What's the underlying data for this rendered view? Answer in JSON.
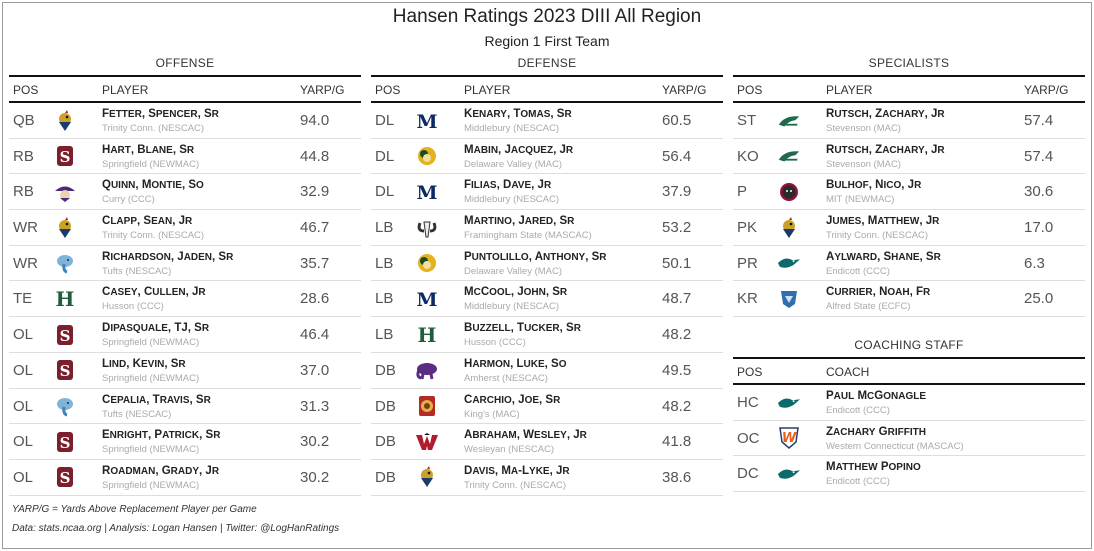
{
  "title": "Hansen Ratings 2023 DIII All Region",
  "subtitle": "Region 1 First Team",
  "headers": {
    "pos": "POS",
    "player": "PLAYER",
    "yarp": "YARP/G",
    "coach": "COACH"
  },
  "offense": {
    "title": "OFFENSE",
    "rows": [
      {
        "pos": "QB",
        "first": "Fetter, Spencer",
        "yr": "Sr",
        "team": "Trinity Conn. (NESCAC)",
        "val": "94.0",
        "logo": "bantam-logo"
      },
      {
        "pos": "RB",
        "first": "Hart, Blane",
        "yr": "Sr",
        "team": "Springfield (NEWMAC)",
        "val": "44.8",
        "logo": "springfield-s-logo"
      },
      {
        "pos": "RB",
        "first": "Quinn, Montie",
        "yr": "So",
        "team": "Curry (CCC)",
        "val": "32.9",
        "logo": "curry-colonel-logo"
      },
      {
        "pos": "WR",
        "first": "Clapp, Sean",
        "yr": "Jr",
        "team": "Trinity Conn. (NESCAC)",
        "val": "46.7",
        "logo": "bantam-logo"
      },
      {
        "pos": "WR",
        "first": "Richardson, Jaden",
        "yr": "Sr",
        "team": "Tufts (NESCAC)",
        "val": "35.7",
        "logo": "jumbo-elephant-logo"
      },
      {
        "pos": "TE",
        "first": "Casey, Cullen",
        "yr": "Jr",
        "team": "Husson (CCC)",
        "val": "28.6",
        "logo": "husson-h-logo"
      },
      {
        "pos": "OL",
        "first": "Dipasquale, TJ",
        "yr": "Sr",
        "team": "Springfield (NEWMAC)",
        "val": "46.4",
        "logo": "springfield-s-logo"
      },
      {
        "pos": "OL",
        "first": "Lind, Kevin",
        "yr": "Sr",
        "team": "Springfield (NEWMAC)",
        "val": "37.0",
        "logo": "springfield-s-logo"
      },
      {
        "pos": "OL",
        "first": "Cepalia, Travis",
        "yr": "Sr",
        "team": "Tufts (NESCAC)",
        "val": "31.3",
        "logo": "jumbo-elephant-logo"
      },
      {
        "pos": "OL",
        "first": "Enright, Patrick",
        "yr": "Sr",
        "team": "Springfield (NEWMAC)",
        "val": "30.2",
        "logo": "springfield-s-logo"
      },
      {
        "pos": "OL",
        "first": "Roadman, Grady",
        "yr": "Jr",
        "team": "Springfield (NEWMAC)",
        "val": "30.2",
        "logo": "springfield-s-logo"
      }
    ]
  },
  "defense": {
    "title": "DEFENSE",
    "rows": [
      {
        "pos": "DL",
        "first": "Kenary, Tomas",
        "yr": "Sr",
        "team": "Middlebury (NESCAC)",
        "val": "60.5",
        "logo": "middlebury-m-logo"
      },
      {
        "pos": "DL",
        "first": "Mabin, Jacquez",
        "yr": "Jr",
        "team": "Delaware Valley (MAC)",
        "val": "56.4",
        "logo": "aggie-ram-logo"
      },
      {
        "pos": "DL",
        "first": "Filias, Dave",
        "yr": "Jr",
        "team": "Middlebury (NESCAC)",
        "val": "37.9",
        "logo": "middlebury-m-logo"
      },
      {
        "pos": "LB",
        "first": "Martino, Jared",
        "yr": "Sr",
        "team": "Framingham State (MASCAC)",
        "val": "53.2",
        "logo": "ram-head-logo"
      },
      {
        "pos": "LB",
        "first": "Puntolillo, Anthony",
        "yr": "Sr",
        "team": "Delaware Valley (MAC)",
        "val": "50.1",
        "logo": "aggie-ram-logo"
      },
      {
        "pos": "LB",
        "first": "McCool, John",
        "yr": "Sr",
        "team": "Middlebury (NESCAC)",
        "val": "48.7",
        "logo": "middlebury-m-logo"
      },
      {
        "pos": "LB",
        "first": "Buzzell, Tucker",
        "yr": "Sr",
        "team": "Husson (CCC)",
        "val": "48.2",
        "logo": "husson-h-logo"
      },
      {
        "pos": "DB",
        "first": "Harmon, Luke",
        "yr": "So",
        "team": "Amherst (NESCAC)",
        "val": "49.5",
        "logo": "mammoth-logo"
      },
      {
        "pos": "DB",
        "first": "Carchio, Joe",
        "yr": "Sr",
        "team": "King's (MAC)",
        "val": "48.2",
        "logo": "monarch-lion-logo"
      },
      {
        "pos": "DB",
        "first": "Abraham, Wesley",
        "yr": "Jr",
        "team": "Wesleyan (NESCAC)",
        "val": "41.8",
        "logo": "cardinal-w-logo"
      },
      {
        "pos": "DB",
        "first": "Davis, Ma-Lyke",
        "yr": "Jr",
        "team": "Trinity Conn. (NESCAC)",
        "val": "38.6",
        "logo": "bantam-logo"
      }
    ]
  },
  "specialists": {
    "title": "SPECIALISTS",
    "rows": [
      {
        "pos": "ST",
        "first": "Rutsch, Zachary",
        "yr": "Jr",
        "team": "Stevenson (MAC)",
        "val": "57.4",
        "logo": "mustang-logo"
      },
      {
        "pos": "KO",
        "first": "Rutsch, Zachary",
        "yr": "Jr",
        "team": "Stevenson (MAC)",
        "val": "57.4",
        "logo": "mustang-logo"
      },
      {
        "pos": "P",
        "first": "Bulhof, Nico",
        "yr": "Jr",
        "team": "MIT (NEWMAC)",
        "val": "30.6",
        "logo": "beaver-logo"
      },
      {
        "pos": "PK",
        "first": "Jumes, Matthew",
        "yr": "Jr",
        "team": "Trinity Conn. (NESCAC)",
        "val": "17.0",
        "logo": "bantam-logo"
      },
      {
        "pos": "PR",
        "first": "Aylward, Shane",
        "yr": "Sr",
        "team": "Endicott (CCC)",
        "val": "6.3",
        "logo": "gull-logo"
      },
      {
        "pos": "KR",
        "first": "Currier, Noah",
        "yr": "Fr",
        "team": "Alfred State (ECFC)",
        "val": "25.0",
        "logo": "pioneer-logo"
      }
    ]
  },
  "coaching": {
    "title": "COACHING STAFF",
    "rows": [
      {
        "pos": "HC",
        "first": "Paul McGonagle",
        "yr": "",
        "team": "Endicott (CCC)",
        "logo": "gull-logo"
      },
      {
        "pos": "OC",
        "first": "Zachary Griffith",
        "yr": "",
        "team": "Western Connecticut (MASCAC)",
        "logo": "wcsu-w-logo"
      },
      {
        "pos": "DC",
        "first": "Matthew Popino",
        "yr": "",
        "team": "Endicott (CCC)",
        "logo": "gull-logo"
      }
    ]
  },
  "footnote": "YARP/G = Yards Above Replacement Player per Game",
  "credits": "Data: stats.ncaa.org | Analysis: Logan Hansen | Twitter: @LogHanRatings",
  "colors": {
    "rule": "#111111",
    "muted": "#aaaaaa",
    "text": "#222222"
  }
}
